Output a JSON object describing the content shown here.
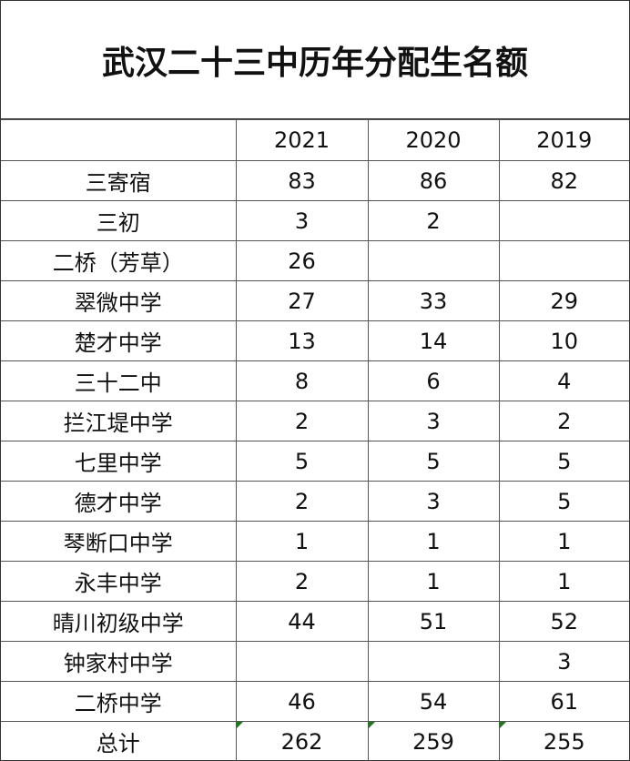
{
  "title": "武汉二十三中历年分配生名额",
  "table": {
    "header": [
      "2021",
      "2020",
      "2019"
    ],
    "rows": [
      [
        "三寄宿",
        83,
        86,
        82
      ],
      [
        "三初",
        3,
        2,
        null
      ],
      [
        "二桥（芳草）",
        26,
        null,
        null
      ],
      [
        "翠微中学",
        27,
        33,
        29
      ],
      [
        "楚才中学",
        13,
        14,
        10
      ],
      [
        "三十二中",
        8,
        6,
        4
      ],
      [
        "拦江堤中学",
        2,
        3,
        2
      ],
      [
        "七里中学",
        5,
        5,
        5
      ],
      [
        "德才中学",
        2,
        3,
        5
      ],
      [
        "琴断口中学",
        1,
        1,
        1
      ],
      [
        "永丰中学",
        2,
        1,
        1
      ],
      [
        "晴川初级中学",
        44,
        51,
        52
      ],
      [
        "钟家村中学",
        null,
        null,
        3
      ],
      [
        "二桥中学",
        46,
        54,
        61
      ],
      [
        "总计",
        262,
        259,
        255
      ]
    ]
  }
}
